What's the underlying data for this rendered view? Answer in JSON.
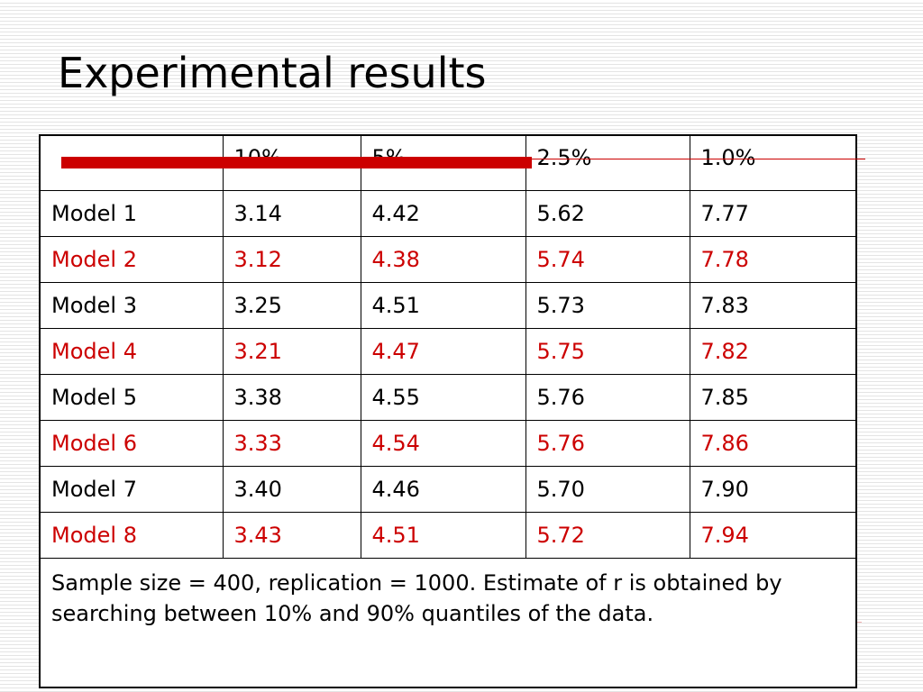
{
  "slide": {
    "title": "Experimental results"
  },
  "colors": {
    "accent": "#cc0000",
    "text": "#000000",
    "background": "#ffffff"
  },
  "table": {
    "header": [
      "",
      "10%",
      "5%",
      "2.5%",
      "1.0%"
    ],
    "rows": [
      {
        "label": "Model 1",
        "values": [
          "3.14",
          "4.42",
          "5.62",
          "7.77"
        ],
        "highlight": false
      },
      {
        "label": "Model 2",
        "values": [
          "3.12",
          "4.38",
          "5.74",
          "7.78"
        ],
        "highlight": true
      },
      {
        "label": "Model 3",
        "values": [
          "3.25",
          "4.51",
          "5.73",
          "7.83"
        ],
        "highlight": false
      },
      {
        "label": "Model 4",
        "values": [
          "3.21",
          "4.47",
          "5.75",
          "7.82"
        ],
        "highlight": true
      },
      {
        "label": "Model 5",
        "values": [
          "3.38",
          "4.55",
          "5.76",
          "7.85"
        ],
        "highlight": false
      },
      {
        "label": "Model 6",
        "values": [
          "3.33",
          "4.54",
          "5.76",
          "7.86"
        ],
        "highlight": true
      },
      {
        "label": "Model 7",
        "values": [
          "3.40",
          "4.46",
          "5.70",
          "7.90"
        ],
        "highlight": false
      },
      {
        "label": "Model 8",
        "values": [
          "3.43",
          "4.51",
          "5.72",
          "7.94"
        ],
        "highlight": true
      }
    ],
    "note": "Sample size = 400, replication = 1000. Estimate of r is obtained by searching between 10% and 90% quantiles of the data."
  }
}
